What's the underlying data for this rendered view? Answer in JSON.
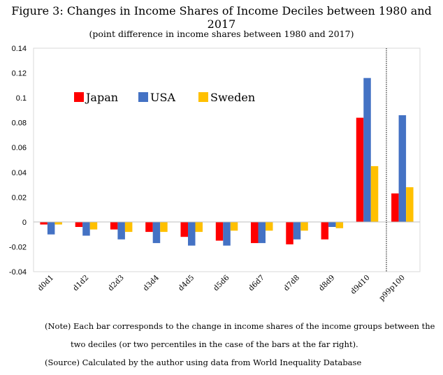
{
  "title": "Figure 3: Changes in Income Shares of Income Deciles between 1980 and 2017",
  "subtitle": "(point difference in income shares between 1980 and 2017)",
  "notes": {
    "note1": "(Note) Each bar corresponds to the change in income shares of the income groups between the",
    "note2": "two deciles (or two percentiles in the case of the bars at the far right).",
    "source": "(Source) Calculated by the author using data from World Inequality Database"
  },
  "chart_data": {
    "type": "bar",
    "categories": [
      "d0d1",
      "d1d2",
      "d2d3",
      "d3d4",
      "d4d5",
      "d5d6",
      "d6d7",
      "d7d8",
      "d8d9",
      "d9d10",
      "p99p100"
    ],
    "series": [
      {
        "name": "Japan",
        "color": "#ff0000",
        "values": [
          -0.002,
          -0.004,
          -0.006,
          -0.008,
          -0.012,
          -0.015,
          -0.017,
          -0.018,
          -0.014,
          0.084,
          0.023
        ]
      },
      {
        "name": "USA",
        "color": "#4472c4",
        "values": [
          -0.01,
          -0.011,
          -0.014,
          -0.017,
          -0.019,
          -0.019,
          -0.017,
          -0.014,
          -0.004,
          0.116,
          0.086
        ]
      },
      {
        "name": "Sweden",
        "color": "#ffc000",
        "values": [
          -0.002,
          -0.006,
          -0.008,
          -0.008,
          -0.008,
          -0.007,
          -0.007,
          -0.007,
          -0.005,
          0.045,
          0.028
        ]
      }
    ],
    "ylim": [
      -0.04,
      0.14
    ],
    "yticks": [
      "-0.04",
      "-0.02",
      "0",
      "0.02",
      "0.04",
      "0.06",
      "0.08",
      "0.1",
      "0.12",
      "0.14"
    ],
    "grid": false,
    "legend": "upper-left"
  }
}
